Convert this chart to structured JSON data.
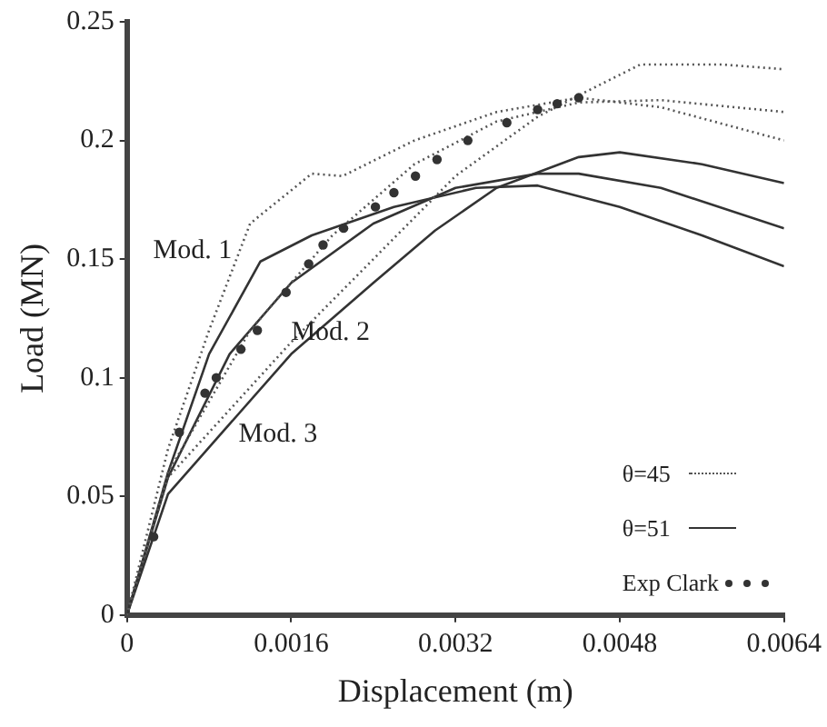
{
  "chart_data": {
    "type": "line",
    "xlabel": "Displacement (m)",
    "ylabel": "Load (MN)",
    "xlim": [
      0,
      0.0064
    ],
    "xticks": [
      0,
      0.0016,
      0.0032,
      0.0048,
      0.0064
    ],
    "ylim": [
      0,
      0.25
    ],
    "yticks": [
      0,
      0.05,
      0.1,
      0.15,
      0.2,
      0.25
    ],
    "grid": false,
    "legend": "bottom right",
    "series": [
      {
        "name": "θ=45",
        "line_style": "dotted",
        "marker": "none",
        "color": "#555555",
        "x": [
          0,
          0.0004,
          0.0008,
          0.0012,
          0.0018,
          0.0021,
          0.0028,
          0.0036,
          0.0044,
          0.0052,
          0.0064
        ],
        "values": [
          0,
          0.07,
          0.12,
          0.165,
          0.186,
          0.185,
          0.2,
          0.212,
          0.218,
          0.214,
          0.2
        ]
      },
      {
        "line_style": "dotted",
        "marker": "none",
        "color": "#555555",
        "x": [
          0,
          0.0004,
          0.0012,
          0.002,
          0.0028,
          0.0036,
          0.0044,
          0.0052,
          0.0064
        ],
        "values": [
          0,
          0.06,
          0.12,
          0.16,
          0.19,
          0.208,
          0.216,
          0.217,
          0.212
        ]
      },
      {
        "line_style": "dotted",
        "marker": "none",
        "color": "#555555",
        "x": [
          0,
          0.0004,
          0.0016,
          0.0024,
          0.0032,
          0.004,
          0.0044,
          0.005,
          0.0058,
          0.0064
        ],
        "values": [
          0,
          0.058,
          0.115,
          0.15,
          0.185,
          0.21,
          0.219,
          0.232,
          0.232,
          0.23
        ]
      },
      {
        "name": "θ=51",
        "line_style": "solid",
        "marker": "none",
        "color": "#333333",
        "x": [
          0,
          0.0004,
          0.0008,
          0.0013,
          0.0018,
          0.0026,
          0.0034,
          0.004,
          0.0048,
          0.0056,
          0.0064
        ],
        "values": [
          0,
          0.06,
          0.11,
          0.149,
          0.16,
          0.172,
          0.18,
          0.181,
          0.172,
          0.16,
          0.147
        ]
      },
      {
        "line_style": "solid",
        "marker": "none",
        "color": "#333333",
        "x": [
          0,
          0.0004,
          0.001,
          0.0016,
          0.0024,
          0.0032,
          0.004,
          0.0044,
          0.0052,
          0.0064
        ],
        "values": [
          0,
          0.058,
          0.11,
          0.14,
          0.165,
          0.18,
          0.186,
          0.186,
          0.18,
          0.163
        ]
      },
      {
        "line_style": "solid",
        "marker": "none",
        "color": "#333333",
        "x": [
          0,
          0.0004,
          0.0016,
          0.0024,
          0.003,
          0.0036,
          0.0044,
          0.0048,
          0.0056,
          0.0064
        ],
        "values": [
          0,
          0.051,
          0.11,
          0.14,
          0.162,
          0.18,
          0.193,
          0.195,
          0.19,
          0.182
        ]
      },
      {
        "name": "Exp Clark",
        "type": "scatter",
        "marker": "circle",
        "color": "#333333",
        "x": [
          0.00026,
          0.00051,
          0.00076,
          0.00087,
          0.00111,
          0.00127,
          0.00155,
          0.00177,
          0.00191,
          0.00211,
          0.00242,
          0.0026,
          0.00281,
          0.00302,
          0.00332,
          0.0037,
          0.004,
          0.00419,
          0.0044
        ],
        "values": [
          0.033,
          0.077,
          0.0935,
          0.1,
          0.112,
          0.12,
          0.136,
          0.148,
          0.156,
          0.163,
          0.172,
          0.178,
          0.185,
          0.192,
          0.2,
          0.2075,
          0.213,
          0.2155,
          0.218
        ]
      }
    ],
    "annotations": [
      "Mod. 1",
      "Mod. 2",
      "Mod. 3"
    ]
  }
}
